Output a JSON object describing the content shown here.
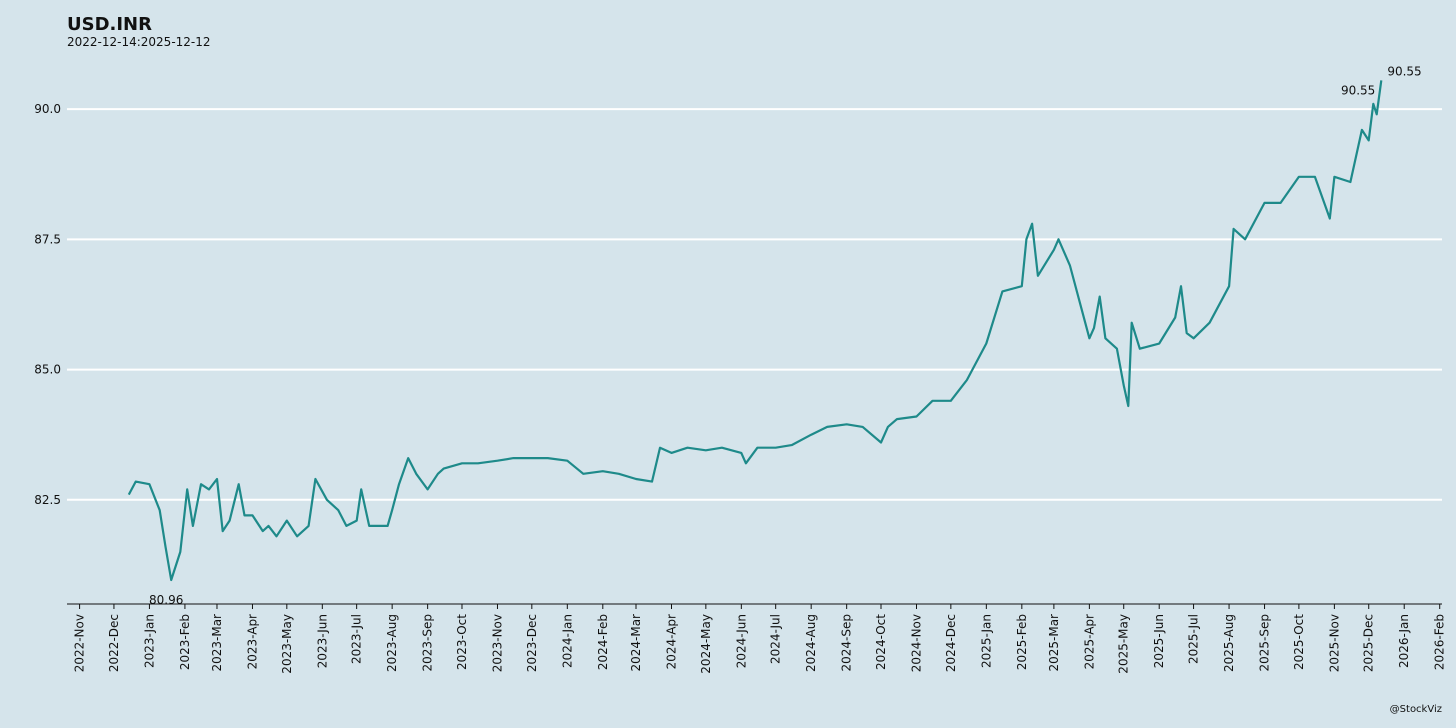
{
  "chart_data": {
    "type": "line",
    "title": "USD.INR",
    "subtitle": "2022-12-14:2025-12-12",
    "caption": "@StockViz",
    "background": "#d5e4eb",
    "grid": true,
    "xlim": [
      "2022-10-21",
      "2026-02-03"
    ],
    "ylim": [
      80.5,
      91.0
    ],
    "yticks": [
      82.5,
      {
        "value": 85,
        "label": "85.0"
      },
      87.5,
      {
        "value": 90,
        "label": "90.0"
      }
    ],
    "xticks": [
      {
        "value": "2022-11-01",
        "label": "2022-Nov"
      },
      {
        "value": "2022-12-01",
        "label": "2022-Dec"
      },
      {
        "value": "2023-01-01",
        "label": "2023-Jan"
      },
      {
        "value": "2023-02-01",
        "label": "2023-Feb"
      },
      {
        "value": "2023-03-01",
        "label": "2023-Mar"
      },
      {
        "value": "2023-04-01",
        "label": "2023-Apr"
      },
      {
        "value": "2023-05-01",
        "label": "2023-May"
      },
      {
        "value": "2023-06-01",
        "label": "2023-Jun"
      },
      {
        "value": "2023-07-01",
        "label": "2023-Jul"
      },
      {
        "value": "2023-08-01",
        "label": "2023-Aug"
      },
      {
        "value": "2023-09-01",
        "label": "2023-Sep"
      },
      {
        "value": "2023-10-01",
        "label": "2023-Oct"
      },
      {
        "value": "2023-11-01",
        "label": "2023-Nov"
      },
      {
        "value": "2023-12-01",
        "label": "2023-Dec"
      },
      {
        "value": "2024-01-01",
        "label": "2024-Jan"
      },
      {
        "value": "2024-02-01",
        "label": "2024-Feb"
      },
      {
        "value": "2024-03-01",
        "label": "2024-Mar"
      },
      {
        "value": "2024-04-01",
        "label": "2024-Apr"
      },
      {
        "value": "2024-05-01",
        "label": "2024-May"
      },
      {
        "value": "2024-06-01",
        "label": "2024-Jun"
      },
      {
        "value": "2024-07-01",
        "label": "2024-Jul"
      },
      {
        "value": "2024-08-01",
        "label": "2024-Aug"
      },
      {
        "value": "2024-09-01",
        "label": "2024-Sep"
      },
      {
        "value": "2024-10-01",
        "label": "2024-Oct"
      },
      {
        "value": "2024-11-01",
        "label": "2024-Nov"
      },
      {
        "value": "2024-12-01",
        "label": "2024-Dec"
      },
      {
        "value": "2025-01-01",
        "label": "2025-Jan"
      },
      {
        "value": "2025-02-01",
        "label": "2025-Feb"
      },
      {
        "value": "2025-03-01",
        "label": "2025-Mar"
      },
      {
        "value": "2025-04-01",
        "label": "2025-Apr"
      },
      {
        "value": "2025-05-01",
        "label": "2025-May"
      },
      {
        "value": "2025-06-01",
        "label": "2025-Jun"
      },
      {
        "value": "2025-07-01",
        "label": "2025-Jul"
      },
      {
        "value": "2025-08-01",
        "label": "2025-Aug"
      },
      {
        "value": "2025-09-01",
        "label": "2025-Sep"
      },
      {
        "value": "2025-10-01",
        "label": "2025-Oct"
      },
      {
        "value": "2025-11-01",
        "label": "2025-Nov"
      },
      {
        "value": "2025-12-01",
        "label": "2025-Dec"
      },
      {
        "value": "2026-01-01",
        "label": "2026-Jan"
      },
      {
        "value": "2026-02-01",
        "label": "2026-Feb"
      }
    ],
    "x": [
      "2022-12-14",
      "2022-12-20",
      "2023-01-01",
      "2023-01-10",
      "2023-01-15",
      "2023-01-20",
      "2023-01-28",
      "2023-02-03",
      "2023-02-08",
      "2023-02-15",
      "2023-02-22",
      "2023-03-01",
      "2023-03-06",
      "2023-03-12",
      "2023-03-20",
      "2023-03-25",
      "2023-04-01",
      "2023-04-10",
      "2023-04-15",
      "2023-04-22",
      "2023-05-01",
      "2023-05-10",
      "2023-05-20",
      "2023-05-26",
      "2023-06-05",
      "2023-06-15",
      "2023-06-22",
      "2023-07-01",
      "2023-07-05",
      "2023-07-12",
      "2023-07-20",
      "2023-07-28",
      "2023-08-01",
      "2023-08-07",
      "2023-08-15",
      "2023-08-22",
      "2023-09-01",
      "2023-09-10",
      "2023-09-15",
      "2023-10-01",
      "2023-10-15",
      "2023-11-01",
      "2023-11-15",
      "2023-12-01",
      "2023-12-15",
      "2024-01-01",
      "2024-01-15",
      "2024-02-01",
      "2024-02-15",
      "2024-03-01",
      "2024-03-15",
      "2024-03-22",
      "2024-04-01",
      "2024-04-15",
      "2024-05-01",
      "2024-05-15",
      "2024-06-01",
      "2024-06-05",
      "2024-06-15",
      "2024-07-01",
      "2024-07-15",
      "2024-08-01",
      "2024-08-15",
      "2024-09-01",
      "2024-09-15",
      "2024-10-01",
      "2024-10-07",
      "2024-10-15",
      "2024-11-01",
      "2024-11-15",
      "2024-12-01",
      "2024-12-15",
      "2025-01-01",
      "2025-01-15",
      "2025-02-01",
      "2025-02-05",
      "2025-02-10",
      "2025-02-15",
      "2025-03-01",
      "2025-03-05",
      "2025-03-15",
      "2025-04-01",
      "2025-04-05",
      "2025-04-10",
      "2025-04-15",
      "2025-04-25",
      "2025-05-01",
      "2025-05-05",
      "2025-05-08",
      "2025-05-15",
      "2025-06-01",
      "2025-06-15",
      "2025-06-20",
      "2025-06-25",
      "2025-07-01",
      "2025-07-15",
      "2025-08-01",
      "2025-08-05",
      "2025-08-15",
      "2025-09-01",
      "2025-09-15",
      "2025-10-01",
      "2025-10-15",
      "2025-10-28",
      "2025-11-01",
      "2025-11-15",
      "2025-11-25",
      "2025-12-01",
      "2025-12-05",
      "2025-12-08",
      "2025-12-12"
    ],
    "series": [
      {
        "name": "USD.INR",
        "color": "#1e8a8a",
        "values": [
          82.6,
          82.85,
          82.8,
          82.3,
          81.6,
          80.96,
          81.5,
          82.7,
          82.0,
          82.8,
          82.7,
          82.9,
          81.9,
          82.1,
          82.8,
          82.2,
          82.2,
          81.9,
          82.0,
          81.8,
          82.1,
          81.8,
          82.0,
          82.9,
          82.5,
          82.3,
          82.0,
          82.1,
          82.7,
          82.0,
          82.0,
          82.0,
          82.3,
          82.8,
          83.3,
          83.0,
          82.7,
          83.0,
          83.1,
          83.2,
          83.2,
          83.25,
          83.3,
          83.3,
          83.3,
          83.25,
          83.0,
          83.05,
          83.0,
          82.9,
          82.85,
          83.5,
          83.4,
          83.5,
          83.45,
          83.5,
          83.4,
          83.2,
          83.5,
          83.5,
          83.55,
          83.75,
          83.9,
          83.95,
          83.9,
          83.6,
          83.9,
          84.05,
          84.1,
          84.4,
          84.4,
          84.8,
          85.5,
          86.5,
          86.6,
          87.5,
          87.8,
          86.8,
          87.3,
          87.5,
          87.0,
          85.6,
          85.8,
          86.4,
          85.6,
          85.4,
          84.7,
          84.3,
          85.9,
          85.4,
          85.5,
          86.0,
          86.6,
          85.7,
          85.6,
          85.9,
          86.6,
          87.7,
          87.5,
          88.2,
          88.2,
          88.7,
          88.7,
          87.9,
          88.7,
          88.6,
          89.6,
          89.4,
          90.1,
          89.9,
          90.55
        ]
      }
    ],
    "annotations": [
      {
        "x": "2023-01-20",
        "value": 80.96,
        "side": "below"
      },
      {
        "x": "2025-12-12",
        "value": 90.55,
        "side": "left"
      },
      {
        "x": "2025-12-12",
        "value": 90.55,
        "side": "right"
      }
    ]
  }
}
